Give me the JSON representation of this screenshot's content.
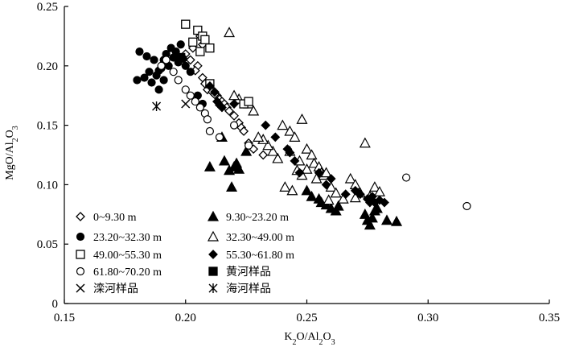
{
  "chart_data": {
    "type": "scatter",
    "title": "",
    "xlabel": "K2O/Al2O3",
    "ylabel": "MgO/Al2O3",
    "xlabel_parts": [
      "K",
      "2",
      "O/Al",
      "2",
      "O",
      "3"
    ],
    "ylabel_parts": [
      "MgO/Al",
      "2",
      "O",
      "3"
    ],
    "xlim": [
      0.15,
      0.35
    ],
    "ylim": [
      0,
      0.25
    ],
    "xticks": [
      0.15,
      0.2,
      0.25,
      0.3,
      0.35
    ],
    "xtick_labels": [
      "0.15",
      "0.20",
      "0.25",
      "0.30",
      "0.35"
    ],
    "yticks": [
      0,
      0.05,
      0.1,
      0.15,
      0.2,
      0.25
    ],
    "ytick_labels": [
      "0",
      "0.05",
      "0.10",
      "0.15",
      "0.20",
      "0.25"
    ],
    "grid": false,
    "legend_position": "bottom-left",
    "series": [
      {
        "name": "0~9.30 m",
        "marker": "diamond-open",
        "points": [
          [
            0.2,
            0.21
          ],
          [
            0.203,
            0.215
          ],
          [
            0.205,
            0.2
          ],
          [
            0.207,
            0.19
          ],
          [
            0.208,
            0.185
          ],
          [
            0.209,
            0.18
          ],
          [
            0.211,
            0.178
          ],
          [
            0.213,
            0.175
          ],
          [
            0.214,
            0.172
          ],
          [
            0.215,
            0.17
          ],
          [
            0.216,
            0.168
          ],
          [
            0.217,
            0.165
          ],
          [
            0.218,
            0.162
          ],
          [
            0.22,
            0.158
          ],
          [
            0.222,
            0.152
          ],
          [
            0.223,
            0.148
          ],
          [
            0.224,
            0.145
          ],
          [
            0.226,
            0.135
          ],
          [
            0.228,
            0.13
          ],
          [
            0.232,
            0.125
          ],
          [
            0.206,
            0.225
          ],
          [
            0.207,
            0.218
          ],
          [
            0.202,
            0.205
          ],
          [
            0.204,
            0.196
          ],
          [
            0.21,
            0.183
          ],
          [
            0.212,
            0.176
          ]
        ]
      },
      {
        "name": "9.30~23.20 m",
        "marker": "triangle-filled",
        "points": [
          [
            0.21,
            0.115
          ],
          [
            0.216,
            0.12
          ],
          [
            0.218,
            0.112
          ],
          [
            0.22,
            0.115
          ],
          [
            0.221,
            0.118
          ],
          [
            0.222,
            0.113
          ],
          [
            0.219,
            0.098
          ],
          [
            0.25,
            0.095
          ],
          [
            0.252,
            0.09
          ],
          [
            0.255,
            0.088
          ],
          [
            0.256,
            0.085
          ],
          [
            0.258,
            0.083
          ],
          [
            0.26,
            0.08
          ],
          [
            0.262,
            0.078
          ],
          [
            0.263,
            0.082
          ],
          [
            0.274,
            0.075
          ],
          [
            0.275,
            0.07
          ],
          [
            0.276,
            0.066
          ],
          [
            0.277,
            0.072
          ],
          [
            0.278,
            0.078
          ],
          [
            0.279,
            0.08
          ],
          [
            0.283,
            0.07
          ],
          [
            0.287,
            0.069
          ],
          [
            0.225,
            0.128
          ],
          [
            0.215,
            0.14
          ]
        ]
      },
      {
        "name": "23.20~32.30 m",
        "marker": "circle-filled",
        "points": [
          [
            0.18,
            0.188
          ],
          [
            0.183,
            0.19
          ],
          [
            0.185,
            0.195
          ],
          [
            0.186,
            0.186
          ],
          [
            0.188,
            0.192
          ],
          [
            0.189,
            0.196
          ],
          [
            0.19,
            0.198
          ],
          [
            0.191,
            0.205
          ],
          [
            0.192,
            0.21
          ],
          [
            0.193,
            0.2
          ],
          [
            0.194,
            0.215
          ],
          [
            0.195,
            0.207
          ],
          [
            0.196,
            0.212
          ],
          [
            0.197,
            0.203
          ],
          [
            0.198,
            0.218
          ],
          [
            0.199,
            0.206
          ],
          [
            0.181,
            0.212
          ],
          [
            0.184,
            0.208
          ],
          [
            0.187,
            0.205
          ],
          [
            0.2,
            0.2
          ],
          [
            0.202,
            0.195
          ],
          [
            0.189,
            0.18
          ],
          [
            0.191,
            0.188
          ],
          [
            0.205,
            0.175
          ],
          [
            0.207,
            0.168
          ]
        ]
      },
      {
        "name": "32.30~49.00 m",
        "marker": "triangle-open",
        "points": [
          [
            0.218,
            0.228
          ],
          [
            0.24,
            0.15
          ],
          [
            0.243,
            0.145
          ],
          [
            0.245,
            0.14
          ],
          [
            0.247,
            0.12
          ],
          [
            0.248,
            0.155
          ],
          [
            0.25,
            0.13
          ],
          [
            0.252,
            0.125
          ],
          [
            0.253,
            0.118
          ],
          [
            0.255,
            0.115
          ],
          [
            0.256,
            0.11
          ],
          [
            0.257,
            0.108
          ],
          [
            0.243,
            0.128
          ],
          [
            0.246,
            0.112
          ],
          [
            0.248,
            0.108
          ],
          [
            0.25,
            0.113
          ],
          [
            0.241,
            0.098
          ],
          [
            0.244,
            0.095
          ],
          [
            0.258,
            0.11
          ],
          [
            0.26,
            0.098
          ],
          [
            0.262,
            0.093
          ],
          [
            0.265,
            0.088
          ],
          [
            0.268,
            0.105
          ],
          [
            0.27,
            0.1
          ],
          [
            0.272,
            0.093
          ],
          [
            0.274,
            0.135
          ],
          [
            0.276,
            0.09
          ],
          [
            0.278,
            0.098
          ],
          [
            0.28,
            0.094
          ],
          [
            0.254,
            0.105
          ],
          [
            0.238,
            0.122
          ],
          [
            0.236,
            0.128
          ],
          [
            0.234,
            0.133
          ],
          [
            0.232,
            0.138
          ],
          [
            0.23,
            0.14
          ],
          [
            0.226,
            0.168
          ],
          [
            0.228,
            0.162
          ],
          [
            0.222,
            0.172
          ],
          [
            0.22,
            0.175
          ],
          [
            0.259,
            0.087
          ],
          [
            0.27,
            0.089
          ]
        ]
      },
      {
        "name": "49.00~55.30 m",
        "marker": "square-open",
        "points": [
          [
            0.2,
            0.235
          ],
          [
            0.205,
            0.23
          ],
          [
            0.207,
            0.225
          ],
          [
            0.208,
            0.222
          ],
          [
            0.21,
            0.215
          ],
          [
            0.203,
            0.22
          ],
          [
            0.206,
            0.212
          ],
          [
            0.21,
            0.185
          ],
          [
            0.224,
            0.168
          ],
          [
            0.226,
            0.17
          ]
        ]
      },
      {
        "name": "55.30~61.80 m",
        "marker": "diamond-filled",
        "points": [
          [
            0.21,
            0.183
          ],
          [
            0.212,
            0.178
          ],
          [
            0.213,
            0.17
          ],
          [
            0.214,
            0.167
          ],
          [
            0.215,
            0.165
          ],
          [
            0.22,
            0.168
          ],
          [
            0.233,
            0.15
          ],
          [
            0.237,
            0.14
          ],
          [
            0.242,
            0.13
          ],
          [
            0.243,
            0.127
          ],
          [
            0.245,
            0.12
          ],
          [
            0.247,
            0.11
          ],
          [
            0.255,
            0.11
          ],
          [
            0.26,
            0.105
          ],
          [
            0.27,
            0.095
          ],
          [
            0.272,
            0.092
          ],
          [
            0.275,
            0.088
          ],
          [
            0.276,
            0.085
          ],
          [
            0.277,
            0.09
          ],
          [
            0.278,
            0.085
          ],
          [
            0.28,
            0.087
          ],
          [
            0.282,
            0.085
          ],
          [
            0.266,
            0.092
          ],
          [
            0.258,
            0.1
          ]
        ]
      },
      {
        "name": "61.80~70.20 m",
        "marker": "circle-open",
        "points": [
          [
            0.19,
            0.2
          ],
          [
            0.192,
            0.205
          ],
          [
            0.195,
            0.195
          ],
          [
            0.197,
            0.188
          ],
          [
            0.2,
            0.18
          ],
          [
            0.202,
            0.175
          ],
          [
            0.204,
            0.17
          ],
          [
            0.206,
            0.165
          ],
          [
            0.208,
            0.16
          ],
          [
            0.209,
            0.155
          ],
          [
            0.21,
            0.145
          ],
          [
            0.214,
            0.14
          ],
          [
            0.22,
            0.15
          ],
          [
            0.226,
            0.133
          ],
          [
            0.291,
            0.106
          ],
          [
            0.316,
            0.082
          ]
        ]
      },
      {
        "name": "黄河样品",
        "marker": "square-filled",
        "points": [
          [
            0.198,
            0.207
          ]
        ]
      },
      {
        "name": "滦河样品",
        "marker": "cross",
        "points": [
          [
            0.2,
            0.168
          ]
        ]
      },
      {
        "name": "海河样品",
        "marker": "asterisk",
        "points": [
          [
            0.188,
            0.166
          ]
        ]
      }
    ],
    "legend": [
      {
        "label": "0~9.30 m",
        "marker": "diamond-open",
        "column": 0,
        "row": 0
      },
      {
        "label": "23.20~32.30 m",
        "marker": "circle-filled",
        "column": 0,
        "row": 1
      },
      {
        "label": "49.00~55.30 m",
        "marker": "square-open",
        "column": 0,
        "row": 2
      },
      {
        "label": "61.80~70.20 m",
        "marker": "circle-open",
        "column": 0,
        "row": 3
      },
      {
        "label": "滦河样品",
        "marker": "cross",
        "column": 0,
        "row": 4
      },
      {
        "label": "9.30~23.20 m",
        "marker": "triangle-filled",
        "column": 1,
        "row": 0
      },
      {
        "label": "32.30~49.00 m",
        "marker": "triangle-open",
        "column": 1,
        "row": 1
      },
      {
        "label": "55.30~61.80 m",
        "marker": "diamond-filled",
        "column": 1,
        "row": 2
      },
      {
        "label": "黄河样品",
        "marker": "square-filled",
        "column": 1,
        "row": 3
      },
      {
        "label": "海河样品",
        "marker": "asterisk",
        "column": 1,
        "row": 4
      }
    ]
  }
}
